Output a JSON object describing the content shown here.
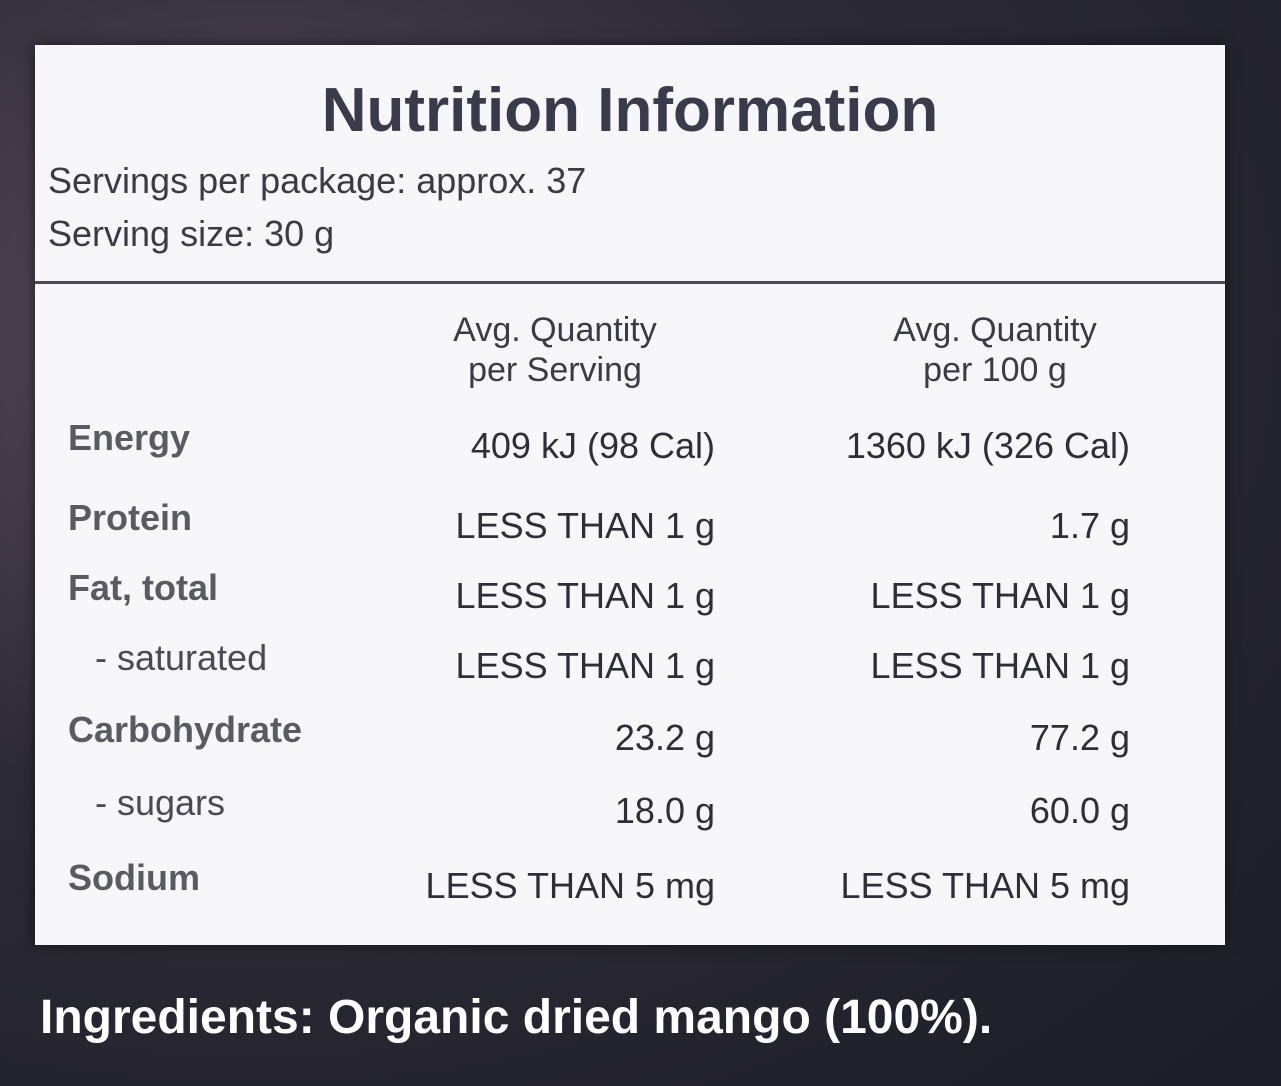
{
  "header": {
    "title": "Nutrition Information",
    "servings_per_package": "Servings per package: approx. 37",
    "serving_size": "Serving size: 30 g"
  },
  "table": {
    "columns": [
      [
        "Avg. Quantity",
        "per Serving"
      ],
      [
        "Avg. Quantity",
        "per 100 g"
      ]
    ],
    "rows": [
      [
        "Energy",
        "409 kJ (98 Cal)",
        "1360 kJ (326 Cal)"
      ],
      [
        "Protein",
        "LESS THAN 1 g",
        "1.7 g"
      ],
      [
        "Fat, total",
        "LESS THAN 1 g",
        "LESS THAN 1 g"
      ],
      [
        "- saturated",
        "LESS THAN 1 g",
        "LESS THAN 1 g"
      ],
      [
        "Carbohydrate",
        "23.2 g",
        "77.2 g"
      ],
      [
        "- sugars",
        "18.0 g",
        "60.0 g"
      ],
      [
        "Sodium",
        "LESS THAN 5 mg",
        "LESS THAN 5 mg"
      ]
    ]
  },
  "ingredients": "Ingredients: Organic dried mango (100%)."
}
